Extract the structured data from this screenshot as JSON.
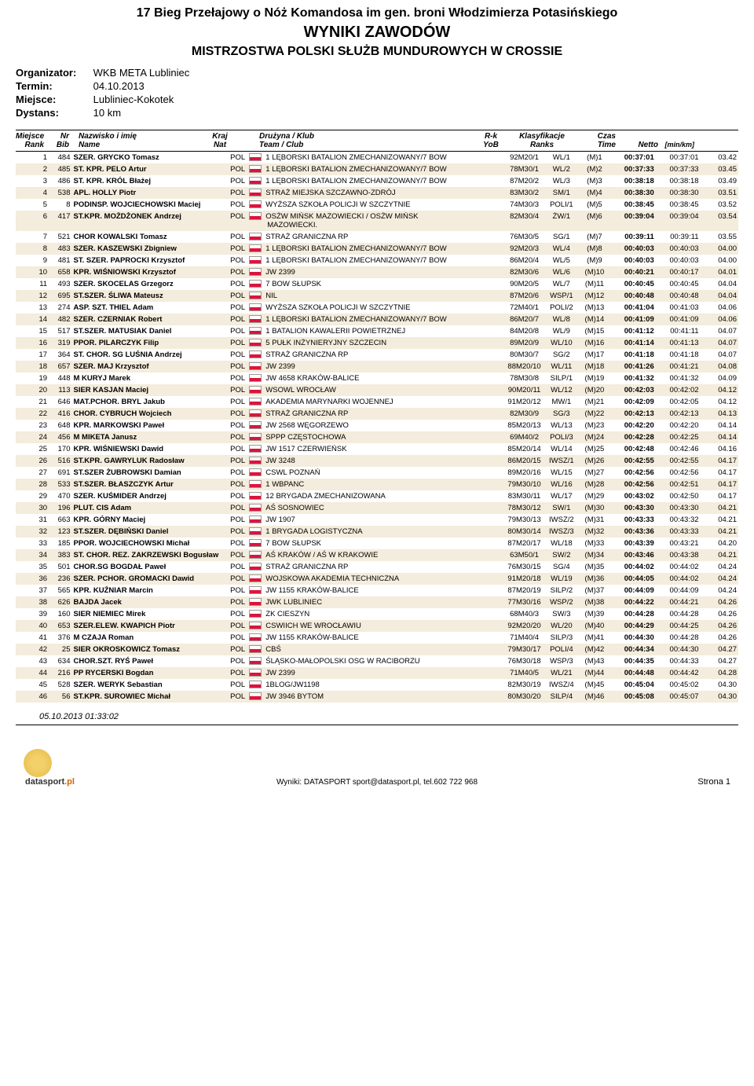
{
  "header": {
    "title_event": "17 Bieg Przełajowy o Nóż Komandosa im gen. broni Włodzimierza Potasińskiego",
    "title_results": "WYNIKI ZAWODÓW",
    "title_championship": "MISTRZOSTWA POLSKI SŁUŻB MUNDUROWYCH W CROSSIE"
  },
  "info": {
    "organizer_label": "Organizator:",
    "organizer_value": "WKB META Lubliniec",
    "date_label": "Termin:",
    "date_value": "04.10.2013",
    "place_label": "Miejsce:",
    "place_value": "Lubliniec-Kokotek",
    "distance_label": "Dystans:",
    "distance_value": "10 km"
  },
  "columns": {
    "rank_top": "Miejsce",
    "rank_bot": "Rank",
    "bib_top": "Nr",
    "bib_bot": "Bib",
    "name_top": "Nazwisko i imię",
    "name_bot": "Name",
    "nat_top": "Kraj",
    "nat_bot": "Nat",
    "club_top": "Drużyna / Klub",
    "club_bot": "Team / Club",
    "yob_top": "R-k",
    "yob_bot": "YoB",
    "ranks_top": "Klasyfikacje",
    "ranks_bot": "Ranks",
    "time_top": "Czas",
    "time_bot": "Time",
    "netto": "Netto",
    "pace": "[min/km]"
  },
  "rows": [
    {
      "rank": 1,
      "bib": 484,
      "name": "SZER. GRYCKO Tomasz",
      "nat": "POL",
      "club": "1 LĘBORSKI BATALION ZMECHANIZOWANY/7 BOW",
      "yob": "92M20/1",
      "r1": "WL/1",
      "r2": "(M)1",
      "time": "00:37:01",
      "netto": "00:37:01",
      "pace": "03.42"
    },
    {
      "rank": 2,
      "bib": 485,
      "name": "ST. KPR. PELO Artur",
      "nat": "POL",
      "club": "1 LĘBORSKI BATALION ZMECHANIZOWANY/7 BOW",
      "yob": "78M30/1",
      "r1": "WL/2",
      "r2": "(M)2",
      "time": "00:37:33",
      "netto": "00:37:33",
      "pace": "03.45"
    },
    {
      "rank": 3,
      "bib": 486,
      "name": "ST. KPR. KRÓL Błażej",
      "nat": "POL",
      "club": "1 LĘBORSKI BATALION ZMECHANIZOWANY/7 BOW",
      "yob": "87M20/2",
      "r1": "WL/3",
      "r2": "(M)3",
      "time": "00:38:18",
      "netto": "00:38:18",
      "pace": "03.49"
    },
    {
      "rank": 4,
      "bib": 538,
      "name": "APL. HOLLY Piotr",
      "nat": "POL",
      "club": "STRAŻ MIEJSKA SZCZAWNO-ZDRÓJ",
      "yob": "83M30/2",
      "r1": "SM/1",
      "r2": "(M)4",
      "time": "00:38:30",
      "netto": "00:38:30",
      "pace": "03.51"
    },
    {
      "rank": 5,
      "bib": 8,
      "name": "PODINSP. WOJCIECHOWSKI Maciej",
      "nat": "POL",
      "club": "WYŻSZA SZKOŁA POLICJI W SZCZYTNIE",
      "yob": "74M30/3",
      "r1": "POLI/1",
      "r2": "(M)5",
      "time": "00:38:45",
      "netto": "00:38:45",
      "pace": "03.52"
    },
    {
      "rank": 6,
      "bib": 417,
      "name": "ST.KPR. MOŻDŻONEK Andrzej",
      "nat": "POL",
      "club": "OSŻW MIŃSK MAZOWIECKI / OSŻW MIŃSK",
      "club2": "MAZOWIECKI.",
      "yob": "82M30/4",
      "r1": "ŻW/1",
      "r2": "(M)6",
      "time": "00:39:04",
      "netto": "00:39:04",
      "pace": "03.54"
    },
    {
      "rank": 7,
      "bib": 521,
      "name": "CHOR KOWALSKI Tomasz",
      "nat": "POL",
      "club": "STRAŻ GRANICZNA RP",
      "yob": "76M30/5",
      "r1": "SG/1",
      "r2": "(M)7",
      "time": "00:39:11",
      "netto": "00:39:11",
      "pace": "03.55"
    },
    {
      "rank": 8,
      "bib": 483,
      "name": "SZER. KASZEWSKI Zbigniew",
      "nat": "POL",
      "club": "1 LĘBORSKI BATALION ZMECHANIZOWANY/7 BOW",
      "yob": "92M20/3",
      "r1": "WL/4",
      "r2": "(M)8",
      "time": "00:40:03",
      "netto": "00:40:03",
      "pace": "04.00"
    },
    {
      "rank": 9,
      "bib": 481,
      "name": "ST. SZER. PAPROCKI Krzysztof",
      "nat": "POL",
      "club": "1 LĘBORSKI BATALION ZMECHANIZOWANY/7 BOW",
      "yob": "86M20/4",
      "r1": "WL/5",
      "r2": "(M)9",
      "time": "00:40:03",
      "netto": "00:40:03",
      "pace": "04.00"
    },
    {
      "rank": 10,
      "bib": 658,
      "name": "KPR. WIŚNIOWSKI Krzysztof",
      "nat": "POL",
      "club": "JW 2399",
      "yob": "82M30/6",
      "r1": "WL/6",
      "r2": "(M)10",
      "time": "00:40:21",
      "netto": "00:40:17",
      "pace": "04.01"
    },
    {
      "rank": 11,
      "bib": 493,
      "name": "SZER. SKOCELAS Grzegorz",
      "nat": "POL",
      "club": "7 BOW SŁUPSK",
      "yob": "90M20/5",
      "r1": "WL/7",
      "r2": "(M)11",
      "time": "00:40:45",
      "netto": "00:40:45",
      "pace": "04.04"
    },
    {
      "rank": 12,
      "bib": 695,
      "name": "ST.SZER. ŚLIWA Mateusz",
      "nat": "POL",
      "club": "NIL",
      "yob": "87M20/6",
      "r1": "WSP/1",
      "r2": "(M)12",
      "time": "00:40:48",
      "netto": "00:40:48",
      "pace": "04.04"
    },
    {
      "rank": 13,
      "bib": 274,
      "name": "ASP. SZT. THIEL Adam",
      "nat": "POL",
      "club": "WYŻSZA SZKOŁA POLICJI W SZCZYTNIE",
      "yob": "72M40/1",
      "r1": "POLI/2",
      "r2": "(M)13",
      "time": "00:41:04",
      "netto": "00:41:03",
      "pace": "04.06"
    },
    {
      "rank": 14,
      "bib": 482,
      "name": "SZER. CZERNIAK Robert",
      "nat": "POL",
      "club": "1 LĘBORSKI BATALION ZMECHANIZOWANY/7 BOW",
      "yob": "86M20/7",
      "r1": "WL/8",
      "r2": "(M)14",
      "time": "00:41:09",
      "netto": "00:41:09",
      "pace": "04.06"
    },
    {
      "rank": 15,
      "bib": 517,
      "name": "ST.SZER. MATUSIAK Daniel",
      "nat": "POL",
      "club": "1 BATALION KAWALERII POWIETRZNEJ",
      "yob": "84M20/8",
      "r1": "WL/9",
      "r2": "(M)15",
      "time": "00:41:12",
      "netto": "00:41:11",
      "pace": "04.07"
    },
    {
      "rank": 16,
      "bib": 319,
      "name": "PPOR. PILARCZYK Filip",
      "nat": "POL",
      "club": "5 PUŁK INŻYNIERYJNY SZCZECIN",
      "yob": "89M20/9",
      "r1": "WL/10",
      "r2": "(M)16",
      "time": "00:41:14",
      "netto": "00:41:13",
      "pace": "04.07"
    },
    {
      "rank": 17,
      "bib": 364,
      "name": "ST. CHOR. SG LUŚNIA Andrzej",
      "nat": "POL",
      "club": "STRAŻ GRANICZNA RP",
      "yob": "80M30/7",
      "r1": "SG/2",
      "r2": "(M)17",
      "time": "00:41:18",
      "netto": "00:41:18",
      "pace": "04.07"
    },
    {
      "rank": 18,
      "bib": 657,
      "name": "SZER. MAJ Krzysztof",
      "nat": "POL",
      "club": "JW 2399",
      "yob": "88M20/10",
      "r1": "WL/11",
      "r2": "(M)18",
      "time": "00:41:26",
      "netto": "00:41:21",
      "pace": "04.08"
    },
    {
      "rank": 19,
      "bib": 448,
      "name": "M KURYJ Marek",
      "nat": "POL",
      "club": "JW 4658 KRAKÓW-BALICE",
      "yob": "78M30/8",
      "r1": "SILP/1",
      "r2": "(M)19",
      "time": "00:41:32",
      "netto": "00:41:32",
      "pace": "04.09"
    },
    {
      "rank": 20,
      "bib": 113,
      "name": "SIER KASJAN Maciej",
      "nat": "POL",
      "club": "WSOWL WROCŁAW",
      "yob": "90M20/11",
      "r1": "WL/12",
      "r2": "(M)20",
      "time": "00:42:03",
      "netto": "00:42:02",
      "pace": "04.12"
    },
    {
      "rank": 21,
      "bib": 646,
      "name": "MAT.PCHOR. BRYL Jakub",
      "nat": "POL",
      "club": "AKADEMIA MARYNARKI WOJENNEJ",
      "yob": "91M20/12",
      "r1": "MW/1",
      "r2": "(M)21",
      "time": "00:42:09",
      "netto": "00:42:05",
      "pace": "04.12"
    },
    {
      "rank": 22,
      "bib": 416,
      "name": "CHOR. CYBRUCH Wojciech",
      "nat": "POL",
      "club": "STRAŻ GRANICZNA RP",
      "yob": "82M30/9",
      "r1": "SG/3",
      "r2": "(M)22",
      "time": "00:42:13",
      "netto": "00:42:13",
      "pace": "04.13"
    },
    {
      "rank": 23,
      "bib": 648,
      "name": "KPR. MARKOWSKI Paweł",
      "nat": "POL",
      "club": "JW 2568 WĘGORZEWO",
      "yob": "85M20/13",
      "r1": "WL/13",
      "r2": "(M)23",
      "time": "00:42:20",
      "netto": "00:42:20",
      "pace": "04.14"
    },
    {
      "rank": 24,
      "bib": 456,
      "name": "M MIKETA Janusz",
      "nat": "POL",
      "club": "SPPP CZĘSTOCHOWA",
      "yob": "69M40/2",
      "r1": "POLI/3",
      "r2": "(M)24",
      "time": "00:42:28",
      "netto": "00:42:25",
      "pace": "04.14"
    },
    {
      "rank": 25,
      "bib": 170,
      "name": "KPR. WIŚNIEWSKI Dawid",
      "nat": "POL",
      "club": "JW 1517 CZERWIEŃSK",
      "yob": "85M20/14",
      "r1": "WL/14",
      "r2": "(M)25",
      "time": "00:42:48",
      "netto": "00:42:46",
      "pace": "04.16"
    },
    {
      "rank": 26,
      "bib": 516,
      "name": "ST.KPR. GAWRYLUK Radosław",
      "nat": "POL",
      "club": "JW 3248",
      "yob": "86M20/15",
      "r1": "IWSZ/1",
      "r2": "(M)26",
      "time": "00:42:55",
      "netto": "00:42:55",
      "pace": "04.17"
    },
    {
      "rank": 27,
      "bib": 691,
      "name": "ST.SZER ŻUBROWSKI Damian",
      "nat": "POL",
      "club": "CSWL POZNAŃ",
      "yob": "89M20/16",
      "r1": "WL/15",
      "r2": "(M)27",
      "time": "00:42:56",
      "netto": "00:42:56",
      "pace": "04.17"
    },
    {
      "rank": 28,
      "bib": 533,
      "name": "ST.SZER. BŁASZCZYK Artur",
      "nat": "POL",
      "club": "1 WBPANC",
      "yob": "79M30/10",
      "r1": "WL/16",
      "r2": "(M)28",
      "time": "00:42:56",
      "netto": "00:42:51",
      "pace": "04.17"
    },
    {
      "rank": 29,
      "bib": 470,
      "name": "SZER. KUŚMIDER Andrzej",
      "nat": "POL",
      "club": "12 BRYGADA ZMECHANIZOWANA",
      "yob": "83M30/11",
      "r1": "WL/17",
      "r2": "(M)29",
      "time": "00:43:02",
      "netto": "00:42:50",
      "pace": "04.17"
    },
    {
      "rank": 30,
      "bib": 196,
      "name": "PLUT. CIS Adam",
      "nat": "POL",
      "club": "AŚ SOSNOWIEC",
      "yob": "78M30/12",
      "r1": "SW/1",
      "r2": "(M)30",
      "time": "00:43:30",
      "netto": "00:43:30",
      "pace": "04.21"
    },
    {
      "rank": 31,
      "bib": 663,
      "name": "KPR. GÓRNY Maciej",
      "nat": "POL",
      "club": "JW 1907",
      "yob": "79M30/13",
      "r1": "IWSZ/2",
      "r2": "(M)31",
      "time": "00:43:33",
      "netto": "00:43:32",
      "pace": "04.21"
    },
    {
      "rank": 32,
      "bib": 123,
      "name": "ST.SZER. DĘBIŃSKI Daniel",
      "nat": "POL",
      "club": "1 BRYGADA LOGISTYCZNA",
      "yob": "80M30/14",
      "r1": "IWSZ/3",
      "r2": "(M)32",
      "time": "00:43:36",
      "netto": "00:43:33",
      "pace": "04.21"
    },
    {
      "rank": 33,
      "bib": 185,
      "name": "PPOR. WOJCIECHOWSKI Michał",
      "nat": "POL",
      "club": "7 BOW SŁUPSK",
      "yob": "87M20/17",
      "r1": "WL/18",
      "r2": "(M)33",
      "time": "00:43:39",
      "netto": "00:43:21",
      "pace": "04.20"
    },
    {
      "rank": 34,
      "bib": 383,
      "name": "ST. CHOR. REZ. ZAKRZEWSKI Bogusław",
      "nat": "POL",
      "club": "AŚ KRAKÓW / AŚ W KRAKOWIE",
      "yob": "63M50/1",
      "r1": "SW/2",
      "r2": "(M)34",
      "time": "00:43:46",
      "netto": "00:43:38",
      "pace": "04.21"
    },
    {
      "rank": 35,
      "bib": 501,
      "name": "CHOR.SG BOGDAŁ Paweł",
      "nat": "POL",
      "club": "STRAŻ GRANICZNA RP",
      "yob": "76M30/15",
      "r1": "SG/4",
      "r2": "(M)35",
      "time": "00:44:02",
      "netto": "00:44:02",
      "pace": "04.24"
    },
    {
      "rank": 36,
      "bib": 236,
      "name": "SZER. PCHOR. GROMACKI Dawid",
      "nat": "POL",
      "club": "WOJSKOWA AKADEMIA TECHNICZNA",
      "yob": "91M20/18",
      "r1": "WL/19",
      "r2": "(M)36",
      "time": "00:44:05",
      "netto": "00:44:02",
      "pace": "04.24"
    },
    {
      "rank": 37,
      "bib": 565,
      "name": "KPR. KUŹNIAR Marcin",
      "nat": "POL",
      "club": "JW 1155 KRAKÓW-BALICE",
      "yob": "87M20/19",
      "r1": "SILP/2",
      "r2": "(M)37",
      "time": "00:44:09",
      "netto": "00:44:09",
      "pace": "04.24"
    },
    {
      "rank": 38,
      "bib": 626,
      "name": "BAJDA Jacek",
      "nat": "POL",
      "club": "JWK LUBLINIEC",
      "yob": "77M30/16",
      "r1": "WSP/2",
      "r2": "(M)38",
      "time": "00:44:22",
      "netto": "00:44:21",
      "pace": "04.26"
    },
    {
      "rank": 39,
      "bib": 160,
      "name": "SIER NIEMIEC Mirek",
      "nat": "POL",
      "club": "ZK CIESZYN",
      "yob": "68M40/3",
      "r1": "SW/3",
      "r2": "(M)39",
      "time": "00:44:28",
      "netto": "00:44:28",
      "pace": "04.26"
    },
    {
      "rank": 40,
      "bib": 653,
      "name": "SZER.ELEW. KWAPICH Piotr",
      "nat": "POL",
      "club": "CSWIICH WE WROCŁAWIU",
      "yob": "92M20/20",
      "r1": "WL/20",
      "r2": "(M)40",
      "time": "00:44:29",
      "netto": "00:44:25",
      "pace": "04.26"
    },
    {
      "rank": 41,
      "bib": 376,
      "name": "M CZAJA Roman",
      "nat": "POL",
      "club": "JW 1155 KRAKÓW-BALICE",
      "yob": "71M40/4",
      "r1": "SILP/3",
      "r2": "(M)41",
      "time": "00:44:30",
      "netto": "00:44:28",
      "pace": "04.26"
    },
    {
      "rank": 42,
      "bib": 25,
      "name": "SIER OKROSKOWICZ Tomasz",
      "nat": "POL",
      "club": "CBŚ",
      "yob": "79M30/17",
      "r1": "POLI/4",
      "r2": "(M)42",
      "time": "00:44:34",
      "netto": "00:44:30",
      "pace": "04.27"
    },
    {
      "rank": 43,
      "bib": 634,
      "name": "CHOR.SZT. RYŚ Paweł",
      "nat": "POL",
      "club": "ŚLĄSKO-MAŁOPOLSKI OSG W RACIBORZU",
      "yob": "76M30/18",
      "r1": "WSP/3",
      "r2": "(M)43",
      "time": "00:44:35",
      "netto": "00:44:33",
      "pace": "04.27"
    },
    {
      "rank": 44,
      "bib": 216,
      "name": "PP RYCERSKI Bogdan",
      "nat": "POL",
      "club": "JW 2399",
      "yob": "71M40/5",
      "r1": "WL/21",
      "r2": "(M)44",
      "time": "00:44:48",
      "netto": "00:44:42",
      "pace": "04.28"
    },
    {
      "rank": 45,
      "bib": 528,
      "name": "SZER. WERYK Sebastian",
      "nat": "POL",
      "club": "1BLOG/JW1198",
      "yob": "82M30/19",
      "r1": "IWSZ/4",
      "r2": "(M)45",
      "time": "00:45:04",
      "netto": "00:45:02",
      "pace": "04.30"
    },
    {
      "rank": 46,
      "bib": 56,
      "name": "ST.KPR. SUROWIEC Michał",
      "nat": "POL",
      "club": "JW 3946 BYTOM",
      "yob": "80M30/20",
      "r1": "SILP/4",
      "r2": "(M)46",
      "time": "00:45:08",
      "netto": "00:45:07",
      "pace": "04.30"
    }
  ],
  "footer": {
    "timestamp": "05.10.2013 01:33:02",
    "source": "Wyniki: DATASPORT sport@datasport.pl, tel.602 722 968",
    "page": "Strona 1",
    "logo_name": "datasport",
    "logo_suffix": ".pl"
  },
  "style": {
    "alt_row_bg": "#f4ecdc",
    "flag_red": "#dc143c"
  }
}
